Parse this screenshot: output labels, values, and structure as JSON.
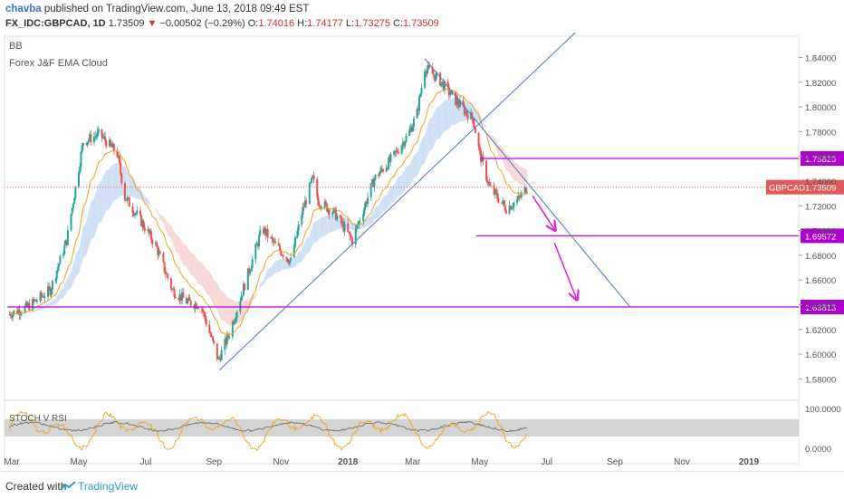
{
  "header": {
    "author": "chavba",
    "published": "published on TradingView.com, June 13, 2018 09:49 EST",
    "symbol": "FX_IDC:GBPCAD, 1D",
    "last": "1.73509",
    "change": "−0.00502 (−0.29%)",
    "open_label": "O:",
    "open": "1.74016",
    "high_label": "H:",
    "high": "1.74177",
    "low_label": "L:",
    "low": "1.73275",
    "close_label": "C:",
    "close": "1.73509"
  },
  "indicators": [
    "BB",
    "Forex J&F  EMA Cloud"
  ],
  "footer": {
    "created": "Created with",
    "brand": "TradingView"
  },
  "chart_data": {
    "type": "candlestick",
    "symbol": "GBPCAD",
    "timeframe": "1D",
    "ylim": [
      1.57,
      1.855
    ],
    "y_ticks": [
      "1.84000",
      "1.82000",
      "1.80000",
      "1.78000",
      "1.76000",
      "1.74000",
      "1.72000",
      "1.70000",
      "1.68000",
      "1.66000",
      "1.64000",
      "1.62000",
      "1.60000",
      "1.58000"
    ],
    "x_ticks": [
      "Mar",
      "May",
      "Jul",
      "Sep",
      "Nov",
      "2018",
      "Mar",
      "May",
      "Jul",
      "Sep",
      "Nov",
      "2019"
    ],
    "price_path": [
      [
        "2017-02-25",
        1.632
      ],
      [
        "2017-03-15",
        1.638
      ],
      [
        "2017-04-05",
        1.652
      ],
      [
        "2017-04-20",
        1.692
      ],
      [
        "2017-05-05",
        1.772
      ],
      [
        "2017-05-20",
        1.778
      ],
      [
        "2017-06-05",
        1.762
      ],
      [
        "2017-06-12",
        1.727
      ],
      [
        "2017-06-25",
        1.71
      ],
      [
        "2017-07-10",
        1.688
      ],
      [
        "2017-07-25",
        1.652
      ],
      [
        "2017-08-08",
        1.642
      ],
      [
        "2017-08-20",
        1.64
      ],
      [
        "2017-09-05",
        1.595
      ],
      [
        "2017-09-15",
        1.617
      ],
      [
        "2017-10-01",
        1.662
      ],
      [
        "2017-10-15",
        1.702
      ],
      [
        "2017-10-25",
        1.69
      ],
      [
        "2017-11-10",
        1.675
      ],
      [
        "2017-11-20",
        1.714
      ],
      [
        "2017-11-30",
        1.742
      ],
      [
        "2017-12-05",
        1.724
      ],
      [
        "2017-12-20",
        1.714
      ],
      [
        "2018-01-05",
        1.692
      ],
      [
        "2018-01-25",
        1.742
      ],
      [
        "2018-02-10",
        1.758
      ],
      [
        "2018-02-25",
        1.778
      ],
      [
        "2018-03-05",
        1.795
      ],
      [
        "2018-03-12",
        1.832
      ],
      [
        "2018-03-25",
        1.822
      ],
      [
        "2018-04-10",
        1.804
      ],
      [
        "2018-04-25",
        1.79
      ],
      [
        "2018-05-01",
        1.762
      ],
      [
        "2018-05-10",
        1.735
      ],
      [
        "2018-05-25",
        1.718
      ],
      [
        "2018-06-05",
        1.725
      ],
      [
        "2018-06-13",
        1.735
      ]
    ],
    "stoch_rsi_levels": [
      "100.0000",
      "0.0000"
    ],
    "price_labels": [
      {
        "name": "resistance",
        "value": "1.75829"
      },
      {
        "name": "current",
        "text": "GBPCAD",
        "value": "1.73509"
      },
      {
        "name": "target-1",
        "value": "1.69572"
      },
      {
        "name": "target-2",
        "value": "1.63813"
      }
    ],
    "horizontal_levels": [
      1.75829,
      1.69572,
      1.63813
    ],
    "trendlines": [
      {
        "name": "uptrend",
        "from": [
          "2017-09-06",
          1.587
        ],
        "to": [
          "2018-08-10",
          1.872
        ]
      },
      {
        "name": "downtrend",
        "from": [
          "2018-03-12",
          1.839
        ],
        "to": [
          "2018-09-15",
          1.638
        ]
      }
    ],
    "arrows": [
      {
        "from": [
          "2018-06-18",
          1.728
        ],
        "to": [
          "2018-07-08",
          1.701
        ]
      },
      {
        "from": [
          "2018-07-08",
          1.69
        ],
        "to": [
          "2018-07-28",
          1.645
        ]
      }
    ],
    "indicator_pane_label": "STOCH V RSI",
    "colors": {
      "up": "#26a69a",
      "down": "#ef5350",
      "level": "#c000e0",
      "trend": "#4a78c4",
      "ema": "#f0a020"
    }
  }
}
